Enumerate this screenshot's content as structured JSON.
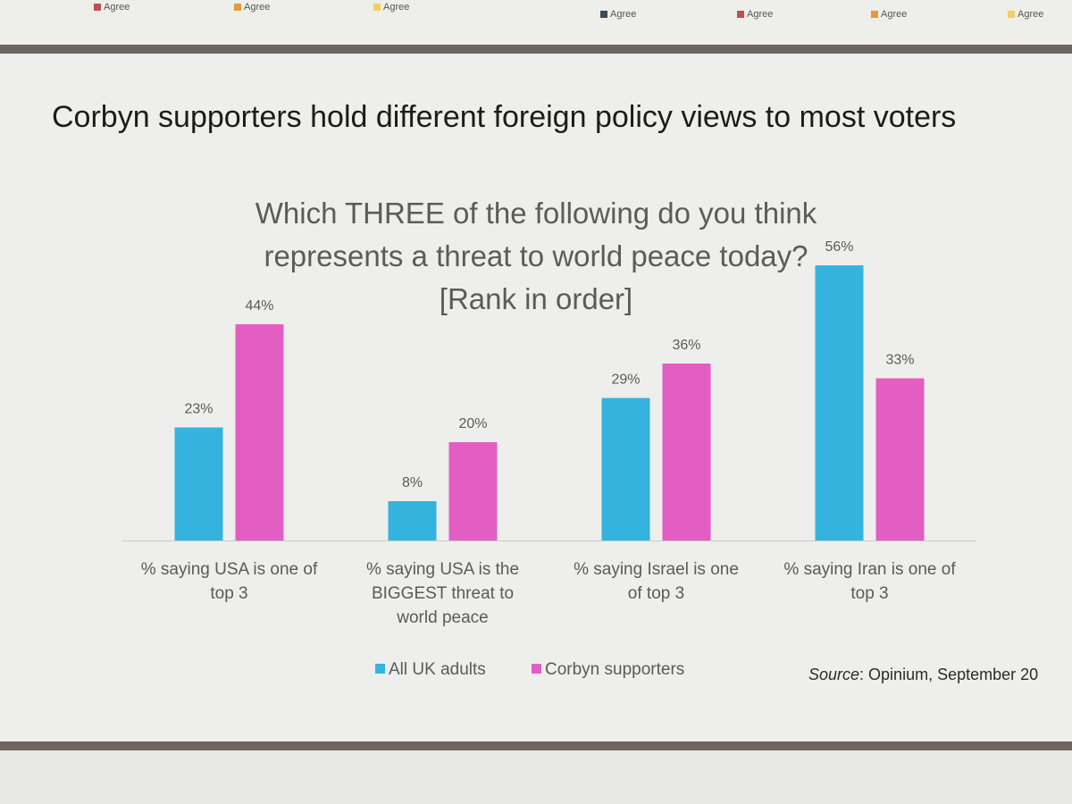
{
  "top_strip": {
    "legend_labels": [
      "Agree",
      "Agree",
      "Agree",
      "Agree",
      "Agree",
      "Agree",
      "Agree"
    ],
    "legend_colors": [
      "#c0504d",
      "#e39a3c",
      "#f0d060",
      "#3d4a55",
      "#c0504d",
      "#e39a3c",
      "#f0d060"
    ]
  },
  "slide": {
    "title": "Corbyn supporters hold different foreign policy views to most voters",
    "source_label": "Source",
    "source_text": ": Opinium, September 20"
  },
  "chart_data": {
    "type": "bar",
    "title_lines": [
      "Which THREE  of the following do you think",
      "represents a threat to world peace today?",
      "[Rank in order]"
    ],
    "categories": [
      [
        "% saying USA is one of",
        "top 3"
      ],
      [
        "% saying USA is the",
        "BIGGEST threat to",
        "world peace"
      ],
      [
        "% saying Israel is one",
        "of top 3"
      ],
      [
        "% saying Iran is one of",
        "top 3"
      ]
    ],
    "series": [
      {
        "name": "All UK adults",
        "values": [
          23,
          8,
          29,
          56
        ],
        "labels": [
          "23%",
          "8%",
          "29%",
          "56%"
        ],
        "color": "#35b3df"
      },
      {
        "name": "Corbyn supporters",
        "values": [
          44,
          20,
          36,
          33
        ],
        "labels": [
          "44%",
          "20%",
          "36%",
          "33%"
        ],
        "color": "#e25ec2"
      }
    ],
    "ylim": [
      0,
      60
    ],
    "grid": false,
    "legend_position": "bottom"
  }
}
